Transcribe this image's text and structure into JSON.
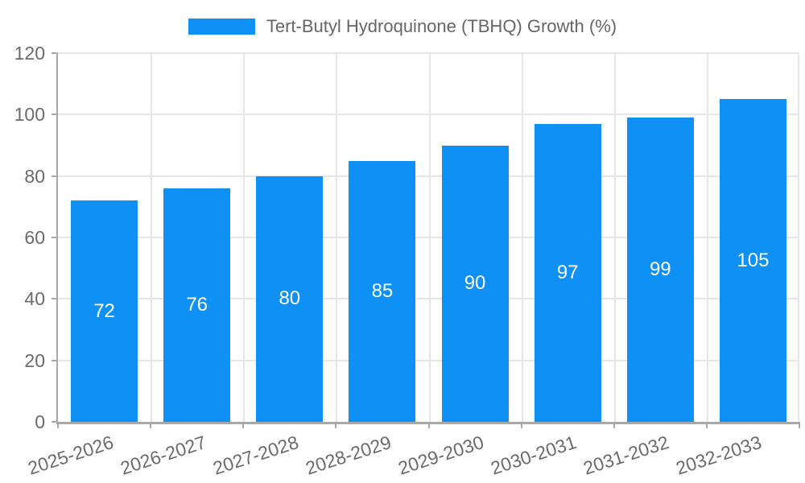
{
  "colors": {
    "bar": "#0e90f5",
    "bar_label": "#ffffff",
    "legend_text": "#666666",
    "tick_text": "#6b6b6b",
    "grid": "#e6e6e6",
    "axis": "#a8a8a8",
    "background": "#ffffff"
  },
  "chart_data": {
    "type": "bar",
    "title": "",
    "categories": [
      "2025-2026",
      "2026-2027",
      "2027-2028",
      "2028-2029",
      "2029-2030",
      "2030-2031",
      "2031-2032",
      "2032-2033"
    ],
    "series": [
      {
        "name": "Tert-Butyl Hydroquinone (TBHQ) Growth (%)",
        "values": [
          72,
          76,
          80,
          85,
          90,
          97,
          99,
          105
        ]
      }
    ],
    "xlabel": "",
    "ylabel": "",
    "ylim": [
      0,
      120
    ],
    "yticks": [
      0,
      20,
      40,
      60,
      80,
      100,
      120
    ],
    "grid": true,
    "legend_position": "top",
    "bar_value_labels": "inside-center",
    "x_label_rotation_deg": -18
  }
}
